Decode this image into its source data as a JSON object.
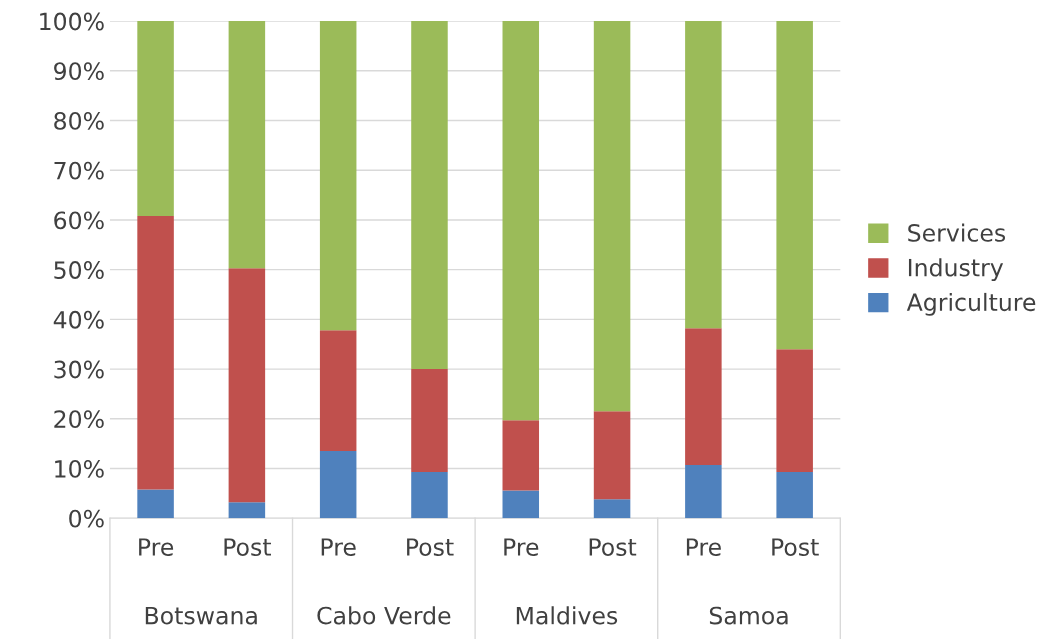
{
  "chart_data": {
    "type": "bar",
    "stacked": true,
    "categories": [
      "Pre",
      "Post",
      "Pre",
      "Post",
      "Pre",
      "Post",
      "Pre",
      "Post"
    ],
    "annotations": [
      "Botswana",
      "Cabo Verde",
      "Maldives",
      "Samoa"
    ],
    "series": [
      {
        "name": "Agriculture",
        "color": "#4f81bd",
        "values": [
          5.8,
          3.2,
          13.5,
          9.3,
          5.6,
          3.8,
          10.7,
          9.3
        ]
      },
      {
        "name": "Industry",
        "color": "#c0504d",
        "values": [
          55.0,
          47.1,
          24.3,
          20.7,
          14.1,
          17.7,
          27.5,
          24.7
        ]
      },
      {
        "name": "Services",
        "color": "#9bbb59",
        "values": [
          39.2,
          49.7,
          62.2,
          70.0,
          80.3,
          78.5,
          61.8,
          66.0
        ]
      }
    ],
    "ylim": [
      0,
      100
    ],
    "yticks": [
      {
        "value": 0,
        "label": "0%"
      },
      {
        "value": 10,
        "label": "10%"
      },
      {
        "value": 20,
        "label": "20%"
      },
      {
        "value": 30,
        "label": "30%"
      },
      {
        "value": 40,
        "label": "40%"
      },
      {
        "value": 50,
        "label": "50%"
      },
      {
        "value": 60,
        "label": "60%"
      },
      {
        "value": 70,
        "label": "70%"
      },
      {
        "value": 80,
        "label": "80%"
      },
      {
        "value": 90,
        "label": "90%"
      },
      {
        "value": 100,
        "label": "100%"
      }
    ],
    "grid": "y",
    "legend": "right"
  }
}
